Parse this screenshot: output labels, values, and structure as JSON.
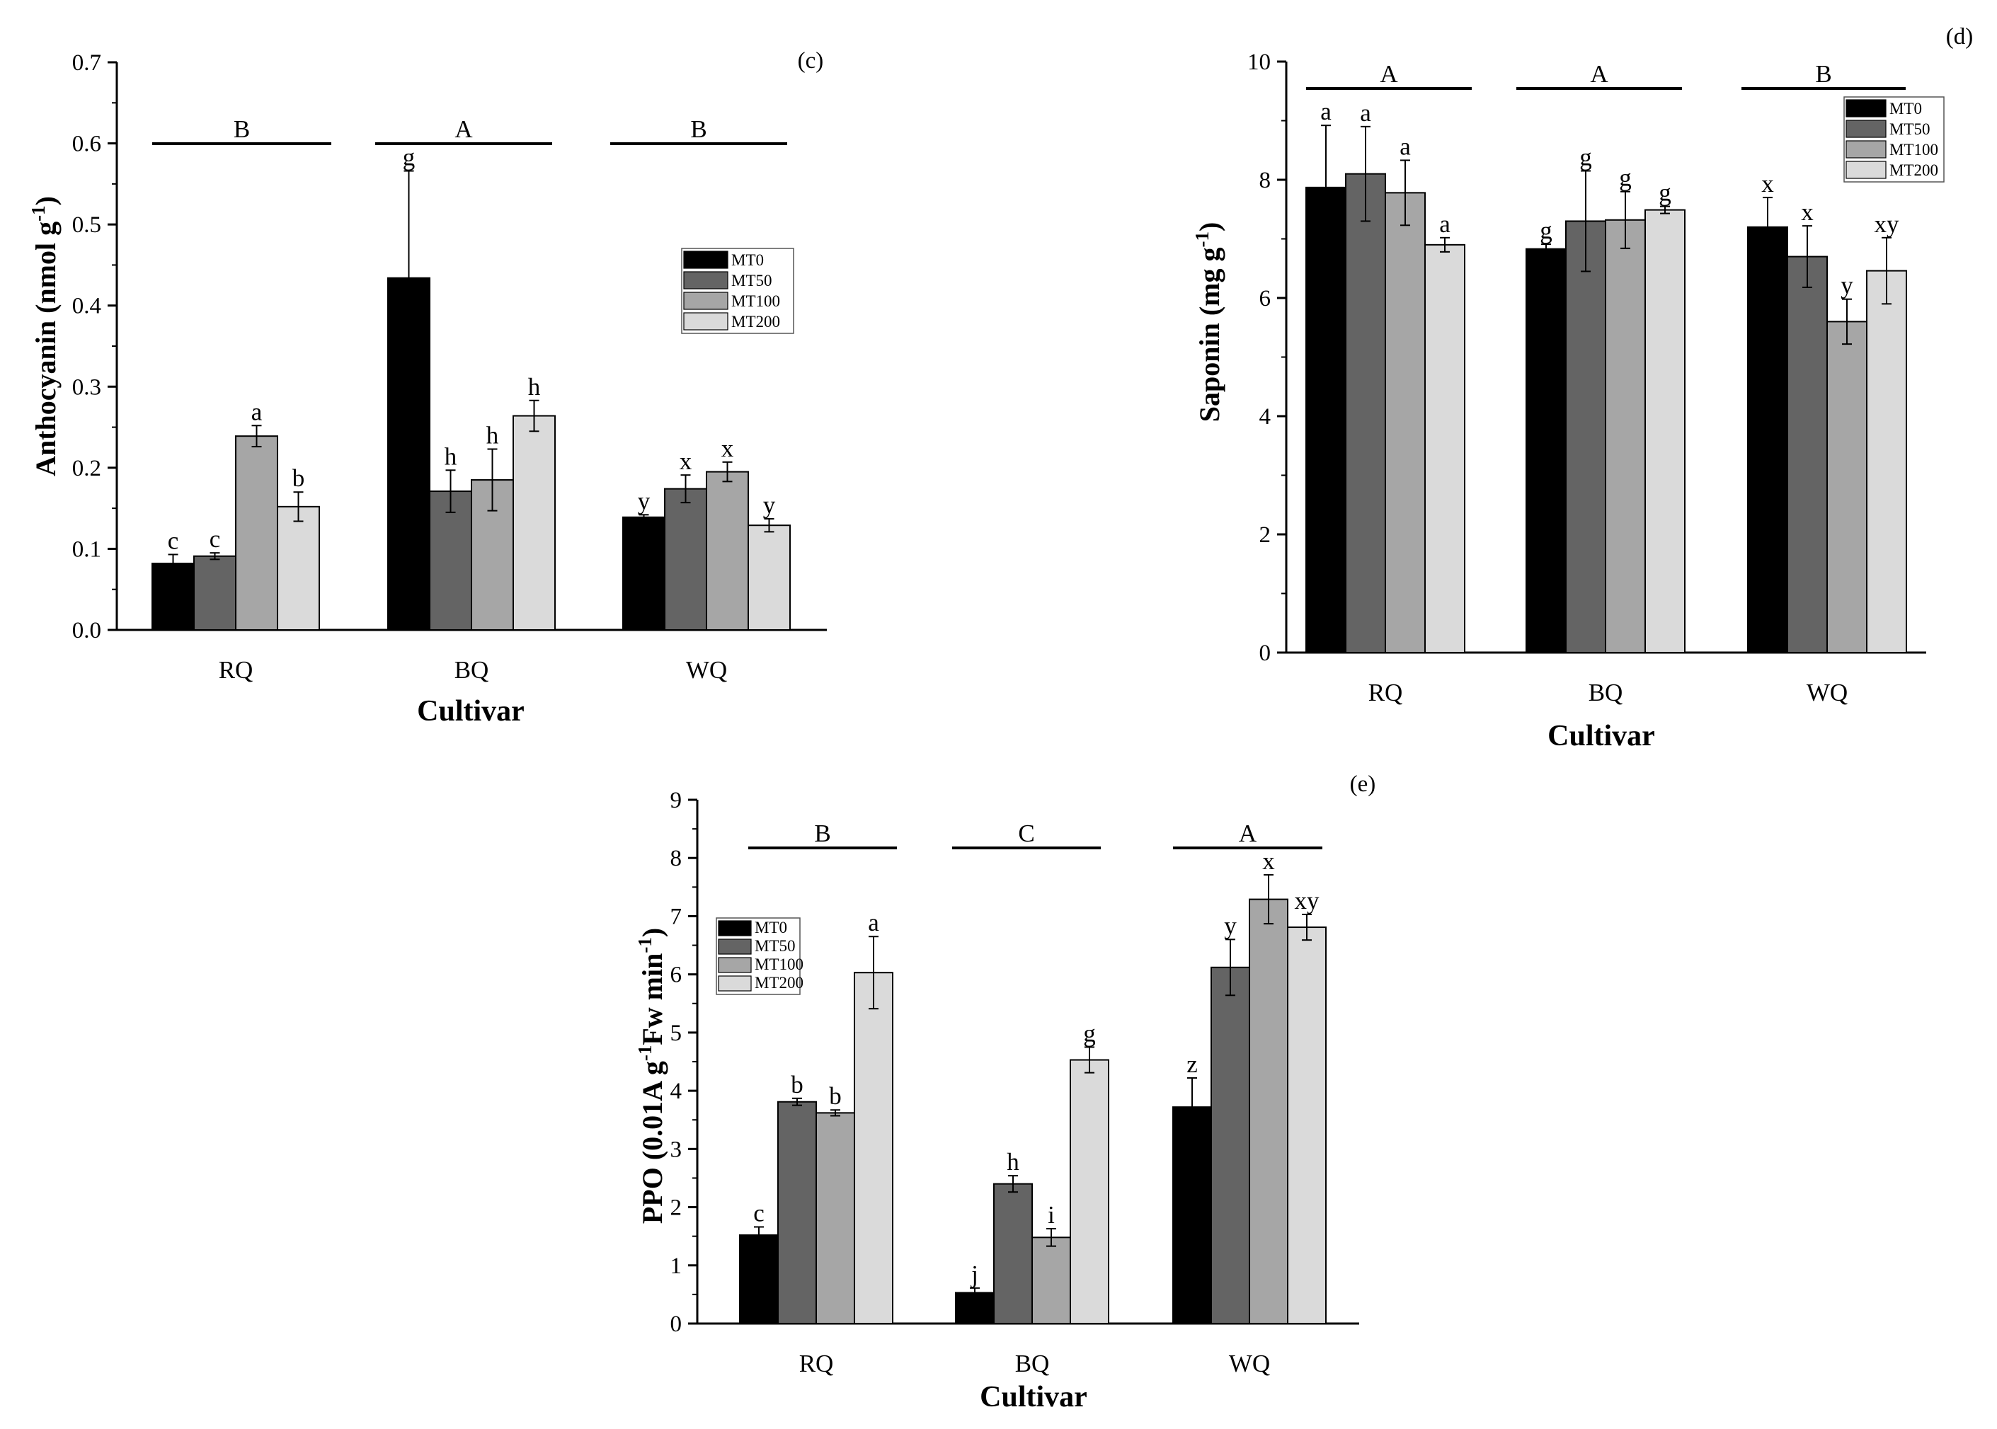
{
  "figure": {
    "series_names": [
      "MT0",
      "MT50",
      "MT100",
      "MT200"
    ],
    "series_colors": [
      "#000000",
      "#646464",
      "#a6a6a6",
      "#dadada"
    ]
  },
  "chart_data": [
    {
      "type": "bar",
      "panel_label": "(c)",
      "title": "",
      "xlabel": "Cultivar",
      "ylabel": "Anthocyanin (nmol g-1)",
      "ylabel_main": "Anthocyanin (nmol g",
      "ylabel_sup": "-1",
      "ylabel_end": ")",
      "ylim": [
        0,
        0.7
      ],
      "yticks": [
        "0.0",
        "0.1",
        "0.2",
        "0.3",
        "0.4",
        "0.5",
        "0.6",
        "0.7"
      ],
      "legend_position": "middle-right",
      "categories": [
        "RQ",
        "BQ",
        "WQ"
      ],
      "group_letters": [
        "B",
        "A",
        "B"
      ],
      "series": [
        {
          "name": "MT0",
          "values": [
            0.082,
            0.434,
            0.139
          ],
          "errors": [
            0.011,
            0.132,
            0.003
          ],
          "letters": [
            "c",
            "g",
            "y"
          ]
        },
        {
          "name": "MT50",
          "values": [
            0.091,
            0.171,
            0.174
          ],
          "errors": [
            0.004,
            0.026,
            0.017
          ],
          "letters": [
            "c",
            "h",
            "x"
          ]
        },
        {
          "name": "MT100",
          "values": [
            0.239,
            0.185,
            0.195
          ],
          "errors": [
            0.013,
            0.038,
            0.012
          ],
          "letters": [
            "a",
            "h",
            "x"
          ]
        },
        {
          "name": "MT200",
          "values": [
            0.152,
            0.264,
            0.129
          ],
          "errors": [
            0.018,
            0.019,
            0.008
          ],
          "letters": [
            "b",
            "h",
            "y"
          ]
        }
      ]
    },
    {
      "type": "bar",
      "panel_label": "(d)",
      "title": "",
      "xlabel": "Cultivar",
      "ylabel": "Saponin (mg g-1)",
      "ylabel_main": "Saponin (mg g",
      "ylabel_sup": "-1",
      "ylabel_end": ")",
      "ylim": [
        0,
        10
      ],
      "yticks": [
        "0",
        "2",
        "4",
        "6",
        "8",
        "10"
      ],
      "legend_position": "top-right",
      "categories": [
        "RQ",
        "BQ",
        "WQ"
      ],
      "group_letters": [
        "A",
        "A",
        "B"
      ],
      "series": [
        {
          "name": "MT0",
          "values": [
            7.87,
            6.83,
            7.2
          ],
          "errors": [
            1.05,
            0.08,
            0.5
          ],
          "letters": [
            "a",
            "g",
            "x"
          ]
        },
        {
          "name": "MT50",
          "values": [
            8.1,
            7.3,
            6.7
          ],
          "errors": [
            0.8,
            0.85,
            0.52
          ],
          "letters": [
            "a",
            "g",
            "x"
          ]
        },
        {
          "name": "MT100",
          "values": [
            7.78,
            7.32,
            5.6
          ],
          "errors": [
            0.55,
            0.48,
            0.38
          ],
          "letters": [
            "a",
            "g",
            "y"
          ]
        },
        {
          "name": "MT200",
          "values": [
            6.9,
            7.49,
            6.46
          ],
          "errors": [
            0.12,
            0.06,
            0.56
          ],
          "letters": [
            "a",
            "g",
            "xy"
          ]
        }
      ]
    },
    {
      "type": "bar",
      "panel_label": "(e)",
      "title": "",
      "xlabel": "Cultivar",
      "ylabel": "PPO (0.01A g-1Fw min-1)",
      "ylabel_main": "PPO (0.01A g",
      "ylabel_sup": "-1",
      "ylabel_mid": "Fw min",
      "ylabel_sup2": "-1",
      "ylabel_end": ")",
      "ylim": [
        0,
        9
      ],
      "yticks": [
        "0",
        "1",
        "2",
        "3",
        "4",
        "5",
        "6",
        "7",
        "8",
        "9"
      ],
      "legend_position": "top-left",
      "categories": [
        "RQ",
        "BQ",
        "WQ"
      ],
      "group_letters": [
        "B",
        "C",
        "A"
      ],
      "series": [
        {
          "name": "MT0",
          "values": [
            1.52,
            0.53,
            3.72
          ],
          "errors": [
            0.14,
            0.08,
            0.5
          ],
          "letters": [
            "c",
            "j",
            "z"
          ]
        },
        {
          "name": "MT50",
          "values": [
            3.81,
            2.4,
            6.12
          ],
          "errors": [
            0.06,
            0.14,
            0.48
          ],
          "letters": [
            "b",
            "h",
            "y"
          ]
        },
        {
          "name": "MT100",
          "values": [
            3.62,
            1.48,
            7.29
          ],
          "errors": [
            0.05,
            0.15,
            0.42
          ],
          "letters": [
            "b",
            "i",
            "x"
          ]
        },
        {
          "name": "MT200",
          "values": [
            6.03,
            4.53,
            6.81
          ],
          "errors": [
            0.62,
            0.22,
            0.22
          ],
          "letters": [
            "a",
            "g",
            "xy"
          ]
        }
      ]
    }
  ]
}
